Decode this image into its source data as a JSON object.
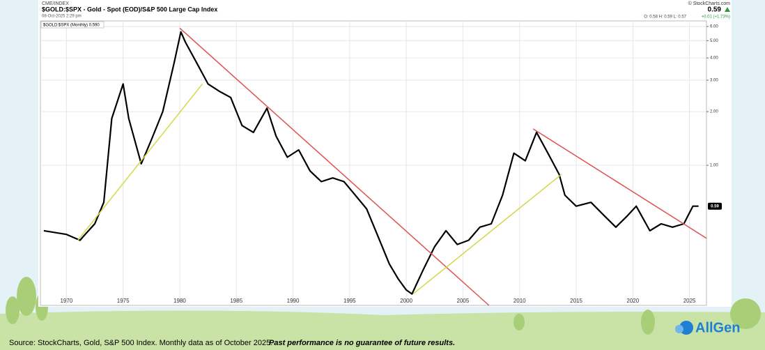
{
  "header": {
    "exchange": "CME/INDEX",
    "title": "$GOLD:$SPX - Gold - Spot (EOD)/S&P 500 Large Cap Index",
    "timestamp": "08-Oct-2025 2:29 pm",
    "brand": "© StockCharts.com",
    "last": "0.59",
    "ohl": "O: 0.58   H: 0.59   L: 0.57",
    "change": "+0.01 (+1.73%)"
  },
  "chart_data": {
    "type": "line",
    "legend_label": "$GOLD:$SPX (Monthly) 0.590",
    "end_label": "0.59",
    "log_scale": true,
    "grid": true,
    "xlim": [
      1967.7,
      2026.5
    ],
    "xticks": [
      1970,
      1975,
      1980,
      1985,
      1990,
      1995,
      2000,
      2005,
      2010,
      2015,
      2020,
      2025
    ],
    "ylim": [
      0.164,
      6.45
    ],
    "yticks": [
      {
        "value": 1,
        "label": "1.00"
      },
      {
        "value": 2,
        "label": "2.00"
      },
      {
        "value": 3,
        "label": "3.00"
      },
      {
        "value": 4,
        "label": "4.00"
      },
      {
        "value": 5,
        "label": "5.00"
      },
      {
        "value": 6,
        "label": "6.00"
      }
    ],
    "series": [
      {
        "name": "$GOLD:$SPX",
        "color": "#000000",
        "x": [
          1968,
          1970,
          1971.2,
          1971.5,
          1972.5,
          1973.3,
          1974,
          1975,
          1975.5,
          1976.6,
          1977.5,
          1978.5,
          1979.5,
          1980.1,
          1980.5,
          1981.5,
          1982.5,
          1983.5,
          1984.5,
          1985.5,
          1986.5,
          1987.7,
          1988.5,
          1989.5,
          1990.5,
          1991.5,
          1992.5,
          1993.5,
          1994.5,
          1995.5,
          1996.5,
          1997.5,
          1998.5,
          1999.3,
          2000,
          2000.5,
          2001.5,
          2002.5,
          2003.5,
          2004.5,
          2005.5,
          2006.5,
          2007.5,
          2008.5,
          2009.5,
          2010.5,
          2011.5,
          2012.5,
          2013.5,
          2014,
          2015,
          2016.3,
          2017.5,
          2018.5,
          2019.5,
          2020.3,
          2021.5,
          2022.5,
          2023.5,
          2024.5,
          2025.3,
          2025.8
        ],
        "values": [
          0.43,
          0.41,
          0.38,
          0.4,
          0.47,
          0.62,
          1.83,
          2.86,
          1.83,
          1.02,
          1.39,
          2.0,
          3.75,
          5.6,
          4.9,
          3.75,
          2.86,
          2.6,
          2.4,
          1.67,
          1.53,
          2.09,
          1.46,
          1.11,
          1.22,
          0.93,
          0.81,
          0.85,
          0.81,
          0.68,
          0.57,
          0.4,
          0.28,
          0.23,
          0.2,
          0.19,
          0.26,
          0.35,
          0.43,
          0.36,
          0.38,
          0.45,
          0.47,
          0.68,
          1.17,
          1.06,
          1.53,
          1.17,
          0.89,
          0.68,
          0.59,
          0.62,
          0.52,
          0.45,
          0.52,
          0.59,
          0.43,
          0.47,
          0.45,
          0.47,
          0.59,
          0.59
        ]
      }
    ],
    "trend_lines": [
      {
        "color": "#e05050",
        "x": [
          1980.0,
          2007.3
        ],
        "values": [
          5.88,
          0.164
        ]
      },
      {
        "color": "#e05050",
        "x": [
          2011.2,
          2026.5
        ],
        "values": [
          1.6,
          0.39
        ]
      },
      {
        "color": "#d6d64a",
        "x": [
          1971.0,
          1982.0
        ],
        "values": [
          0.38,
          2.86
        ]
      },
      {
        "color": "#d6d64a",
        "x": [
          2000.6,
          2013.7
        ],
        "values": [
          0.19,
          0.89
        ]
      }
    ]
  },
  "footer": {
    "source": "Source: StockCharts, Gold, S&P 500 Index. Monthly data as of October 2025.",
    "disclaimer": "Past performance is no guarantee of future results.",
    "logo": "AllGen"
  }
}
